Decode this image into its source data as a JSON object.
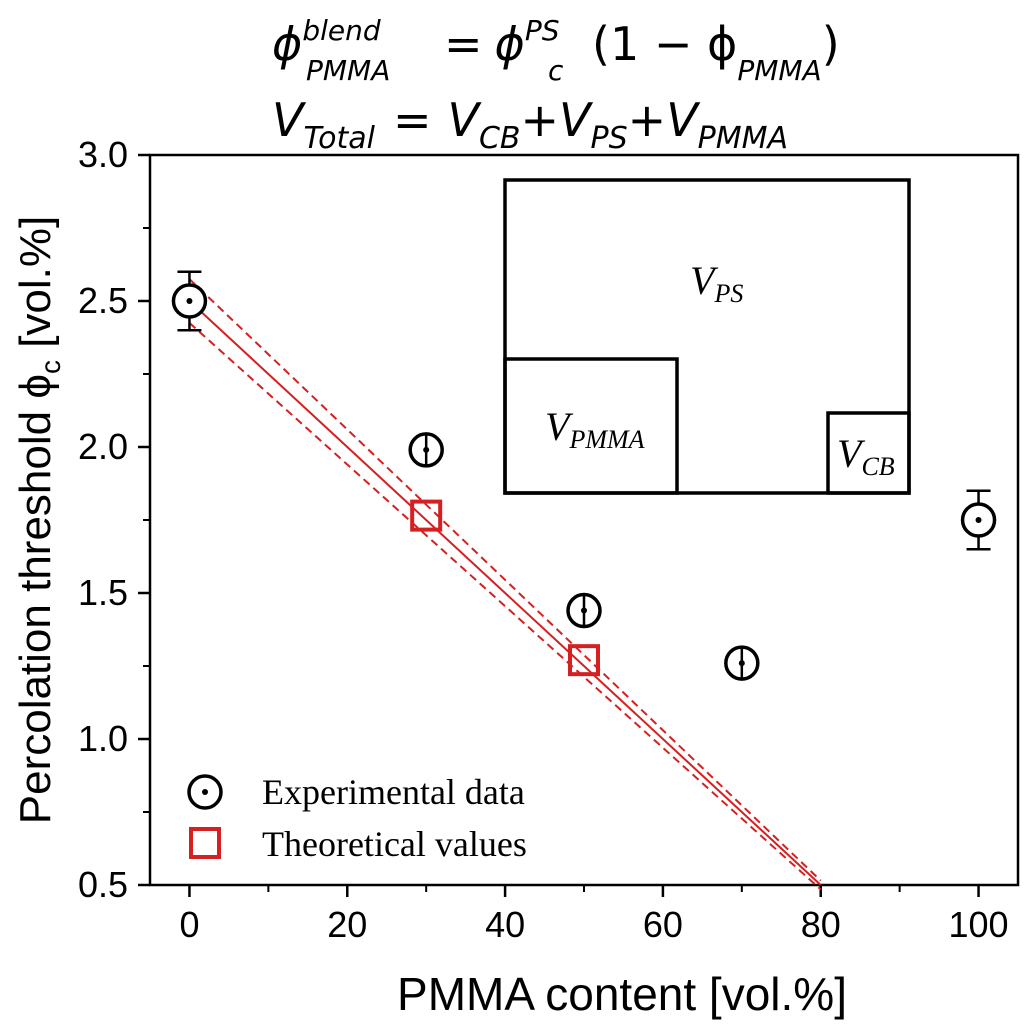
{
  "equations": {
    "line1": {
      "lhs_base": "ϕ",
      "lhs_sup": "blend",
      "lhs_sub": "PMMA",
      "eq": "=",
      "rhs_base": "ϕ",
      "rhs_sup": "PS",
      "rhs_sub": "c",
      "rhs_rest": "(1 − ϕ",
      "rhs_sub2": "PMMA",
      "rhs_close": ")"
    },
    "line2": {
      "v1": "V",
      "v1_sub": "Total",
      "eq": "=",
      "v2": "V",
      "v2_sub": "CB",
      "plus1": "+",
      "v3": "V",
      "v3_sub": "PS",
      "plus2": "+",
      "v4": "V",
      "v4_sub": "PMMA"
    }
  },
  "inset": {
    "ps_label": "V",
    "ps_sub": "PS",
    "pmma_label": "V",
    "pmma_sub": "PMMA",
    "cb_label": "V",
    "cb_sub": "CB"
  },
  "chart_data": {
    "type": "scatter",
    "xlabel": "PMMA content [vol.%]",
    "ylabel_main": "Percolation threshold ϕ",
    "ylabel_sub": "c",
    "ylabel_tail": " [vol.%]",
    "xlim": [
      -5,
      105
    ],
    "ylim": [
      0.5,
      3.0
    ],
    "xticks": [
      0,
      20,
      40,
      60,
      80,
      100
    ],
    "yticks": [
      0.5,
      1.0,
      1.5,
      2.0,
      2.5,
      3.0
    ],
    "xtick_labels": [
      "0",
      "20",
      "40",
      "60",
      "80",
      "100"
    ],
    "ytick_labels": [
      "0.5",
      "1.0",
      "1.5",
      "2.0",
      "2.5",
      "3.0"
    ],
    "series": [
      {
        "name": "Experimental data",
        "marker": "circle-dot",
        "color": "#000000",
        "points": [
          {
            "x": 0,
            "y": 2.5,
            "err": 0.1
          },
          {
            "x": 30,
            "y": 1.99,
            "err": 0.03
          },
          {
            "x": 50,
            "y": 1.44,
            "err": 0.03
          },
          {
            "x": 70,
            "y": 1.26,
            "err": 0.04
          },
          {
            "x": 100,
            "y": 1.75,
            "err": 0.1
          }
        ]
      },
      {
        "name": "Theoretical values",
        "marker": "square",
        "color": "#d42020",
        "points": [
          {
            "x": 30,
            "y": 1.765
          },
          {
            "x": 50,
            "y": 1.27
          }
        ]
      }
    ],
    "fit_line": {
      "color": "#d42020",
      "x": [
        0,
        80
      ],
      "center": [
        2.5,
        0.5
      ],
      "upper": [
        2.575,
        0.515
      ],
      "lower": [
        2.425,
        0.485
      ]
    },
    "legend_position": "bottom-left"
  }
}
